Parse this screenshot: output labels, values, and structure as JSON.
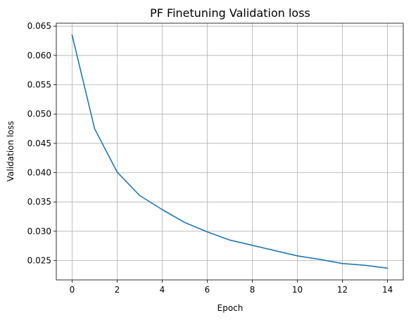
{
  "chart_data": {
    "type": "line",
    "title": "PF Finetuning Validation loss",
    "xlabel": "Epoch",
    "ylabel": "Validation loss",
    "xlim": [
      -0.7,
      14.7
    ],
    "ylim": [
      0.0217,
      0.0655
    ],
    "xticks": [
      0,
      2,
      4,
      6,
      8,
      10,
      12,
      14
    ],
    "xtick_labels": [
      "0",
      "2",
      "4",
      "6",
      "8",
      "10",
      "12",
      "14"
    ],
    "yticks": [
      0.025,
      0.03,
      0.035,
      0.04,
      0.045,
      0.05,
      0.055,
      0.06,
      0.065
    ],
    "ytick_labels": [
      "0.025",
      "0.030",
      "0.035",
      "0.040",
      "0.045",
      "0.050",
      "0.055",
      "0.060",
      "0.065"
    ],
    "grid": true,
    "series": [
      {
        "color": "#1f77b4",
        "x": [
          0,
          1,
          2,
          3,
          4,
          5,
          6,
          7,
          8,
          9,
          10,
          11,
          12,
          13,
          14
        ],
        "y": [
          0.0635,
          0.0475,
          0.0401,
          0.0361,
          0.0337,
          0.0315,
          0.0299,
          0.0285,
          0.0276,
          0.0267,
          0.0258,
          0.0252,
          0.0245,
          0.0242,
          0.0237
        ]
      }
    ]
  }
}
